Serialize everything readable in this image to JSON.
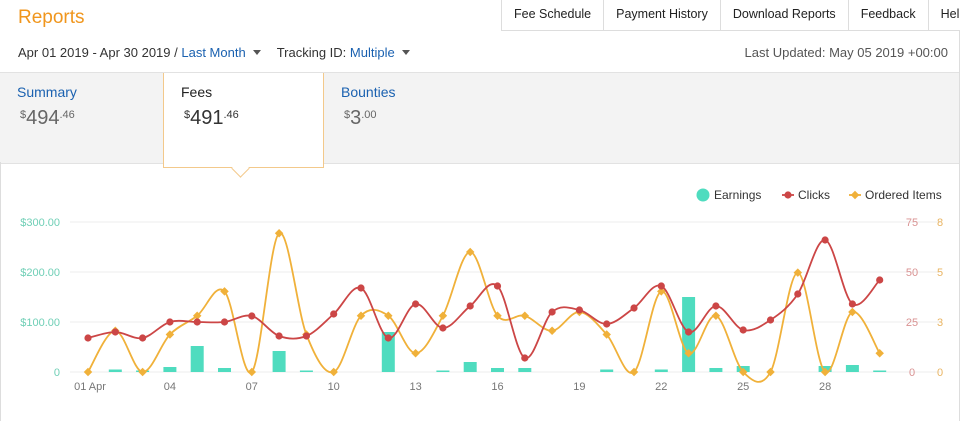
{
  "header": {
    "title": "Reports"
  },
  "topnav": {
    "items": [
      "Fee Schedule",
      "Payment History",
      "Download Reports",
      "Feedback",
      "Help"
    ]
  },
  "filters": {
    "date_range": "Apr 01 2019 - Apr 30 2019 /",
    "period_label": "Last Month",
    "tracking_label": "Tracking ID:",
    "tracking_value": "Multiple"
  },
  "last_updated": "Last Updated: May 05 2019 +00:00",
  "tabs": [
    {
      "label": "Summary",
      "currency": "$",
      "dollars": "494",
      "cents": ".46"
    },
    {
      "label": "Fees",
      "currency": "$",
      "dollars": "491",
      "cents": ".46"
    },
    {
      "label": "Bounties",
      "currency": "$",
      "dollars": "3",
      "cents": ".00"
    }
  ],
  "selected_tab": "Fees",
  "chart_data": {
    "type": "bar+line",
    "x_labels": [
      "01 Apr",
      "04",
      "07",
      "10",
      "13",
      "16",
      "19",
      "22",
      "25",
      "28"
    ],
    "x_days": [
      1,
      2,
      3,
      4,
      5,
      6,
      7,
      8,
      9,
      10,
      11,
      12,
      13,
      14,
      15,
      16,
      17,
      18,
      19,
      20,
      21,
      22,
      23,
      24,
      25,
      26,
      27,
      28,
      29,
      30
    ],
    "y_left_ticks": [
      "$300.00",
      "$200.00",
      "$100.00",
      "0"
    ],
    "y_left_range": [
      0,
      300
    ],
    "y_mid_ticks": [
      "75",
      "50",
      "25",
      "0"
    ],
    "y_mid_range": [
      0,
      75
    ],
    "y_right_ticks": [
      "8",
      "5",
      "3",
      "0"
    ],
    "y_right_range": [
      0,
      8
    ],
    "legend_position": "top-right",
    "series": [
      {
        "name": "Earnings",
        "type": "bar",
        "color": "#4fdcbf",
        "axis": "left",
        "values": [
          0,
          5,
          3,
          10,
          52,
          8,
          0,
          42,
          3,
          0,
          0,
          80,
          0,
          3,
          20,
          8,
          8,
          0,
          0,
          5,
          0,
          5,
          150,
          8,
          12,
          0,
          0,
          12,
          14,
          3
        ]
      },
      {
        "name": "Clicks",
        "type": "line",
        "color": "#cc4646",
        "axis": "mid",
        "values": [
          17,
          20,
          17,
          25,
          25,
          25,
          28,
          18,
          18,
          29,
          42,
          17,
          34,
          22,
          33,
          43,
          7,
          30,
          31,
          24,
          32,
          43,
          20,
          33,
          21,
          26,
          39,
          66,
          34,
          46
        ]
      },
      {
        "name": "Ordered Items",
        "type": "line",
        "color": "#f0b13a",
        "axis": "right",
        "values": [
          0,
          2.2,
          0,
          2,
          3,
          4.3,
          0,
          7.4,
          2,
          0,
          3,
          3,
          1,
          3,
          6.4,
          3,
          3,
          2.2,
          3.2,
          2,
          0,
          4.3,
          1,
          3,
          0,
          0,
          5.3,
          0,
          3.2,
          1
        ]
      }
    ]
  }
}
